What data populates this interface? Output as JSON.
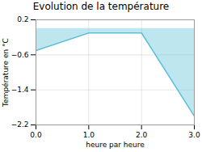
{
  "chart_data": {
    "type": "area",
    "title": "Evolution de la température",
    "x": [
      0,
      1,
      2,
      3
    ],
    "values": [
      -0.5,
      -0.1,
      -0.1,
      -2.0
    ],
    "xlim": [
      0,
      3
    ],
    "xticks": [
      0,
      1,
      2,
      3
    ],
    "ylim": [
      -2.2,
      0.2
    ],
    "yticks": [
      0.2,
      -0.6,
      -1.4,
      -2.2
    ],
    "xlabel": "heure par heure",
    "ylabel": "Température en °C",
    "grid": true,
    "color": "#5bc0d8"
  }
}
